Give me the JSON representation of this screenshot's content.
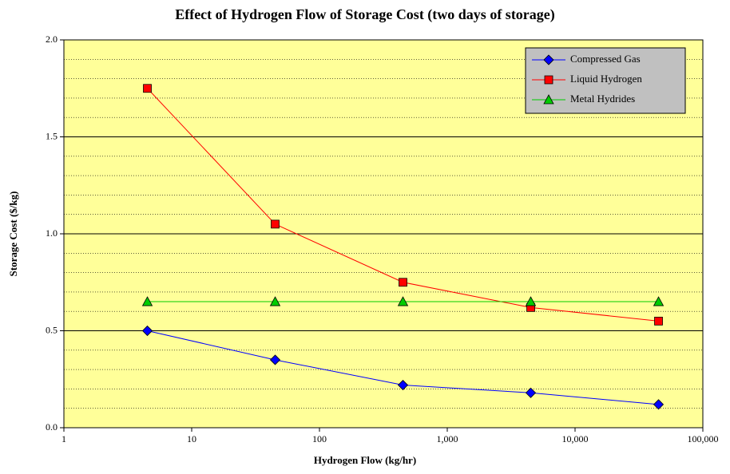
{
  "chart_data": {
    "type": "line",
    "title": "Effect of Hydrogen Flow of Storage Cost (two days of storage)",
    "xlabel": "Hydrogen Flow (kg/hr)",
    "ylabel": "Storage Cost ($/kg)",
    "x": [
      4.5,
      45,
      450,
      4500,
      45000
    ],
    "xscale": "log",
    "xlim": [
      1,
      100000
    ],
    "xticks": [
      1,
      10,
      100,
      {
        "value": 1000,
        "label": "1,000"
      },
      {
        "value": 10000,
        "label": "10,000"
      },
      {
        "value": 100000,
        "label": "100,000"
      }
    ],
    "ylim": [
      0,
      2
    ],
    "yticks": [
      {
        "value": 0,
        "label": "0.0"
      },
      0.5,
      {
        "value": 1,
        "label": "1.0"
      },
      1.5,
      {
        "value": 2,
        "label": "2.0"
      }
    ],
    "minor_yticks": [
      0.1,
      0.2,
      0.3,
      0.4,
      0.6,
      0.7,
      0.8,
      0.9,
      1.1,
      1.2,
      1.3,
      1.4,
      1.6,
      1.7,
      1.8,
      1.9
    ],
    "grid": true,
    "background": "#ffff99",
    "legend": "upper right",
    "series": [
      {
        "name": "Compressed Gas",
        "color": "#0000ff",
        "marker": "diamond",
        "values": [
          0.5,
          0.35,
          0.22,
          0.18,
          0.12
        ]
      },
      {
        "name": "Liquid Hydrogen",
        "color": "#ff0000",
        "marker": "square",
        "values": [
          1.75,
          1.05,
          0.75,
          0.62,
          0.55
        ]
      },
      {
        "name": "Metal Hydrides",
        "color": "#00cc00",
        "marker": "triangle",
        "values": [
          0.65,
          0.65,
          0.65,
          0.65,
          0.65
        ]
      }
    ]
  }
}
